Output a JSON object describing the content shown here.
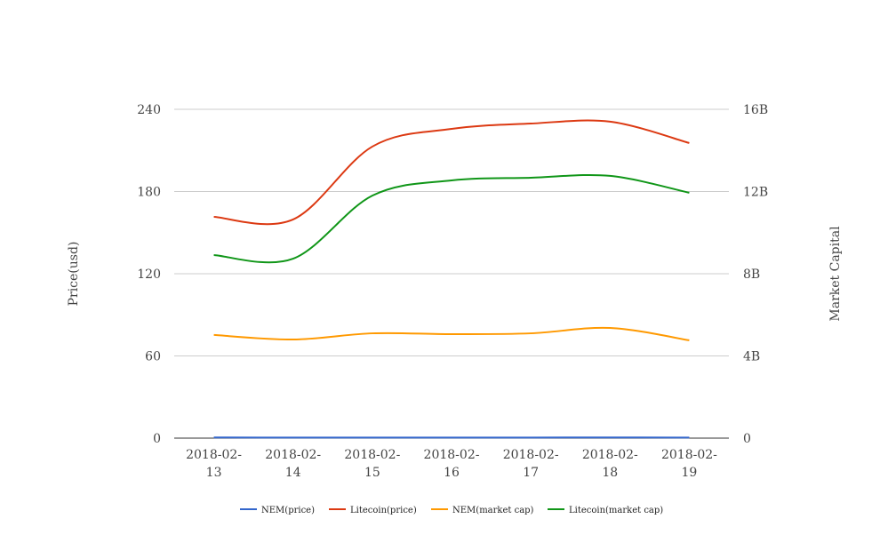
{
  "chart_data": {
    "type": "line",
    "categories": [
      "2018-02-13",
      "2018-02-14",
      "2018-02-15",
      "2018-02-16",
      "2018-02-17",
      "2018-02-18",
      "2018-02-19"
    ],
    "y_left": {
      "label": "Price(usd)",
      "range": [
        0,
        240
      ],
      "ticks": [
        "0",
        "60",
        "120",
        "180",
        "240"
      ]
    },
    "y_right": {
      "label": "Market Capital",
      "range": [
        0,
        16000000000
      ],
      "ticks": [
        "0",
        "4B",
        "8B",
        "12B",
        "16B"
      ]
    },
    "grid": true,
    "curve": "smooth",
    "legend": "bottom",
    "series": [
      {
        "name": "NEM(price)",
        "axis": "left",
        "color": "#3366cc",
        "values": [
          0.45,
          0.43,
          0.44,
          0.43,
          0.44,
          0.46,
          0.42
        ]
      },
      {
        "name": "Litecoin(price)",
        "axis": "left",
        "color": "#dc3912",
        "values": [
          161.5,
          159.6,
          212.8,
          225.7,
          229.6,
          231,
          215.4
        ]
      },
      {
        "name": "NEM(market cap)",
        "axis": "right",
        "color": "#ff9900",
        "values": [
          5020000000,
          4800000000,
          5100000000,
          5060000000,
          5100000000,
          5360000000,
          4760000000
        ]
      },
      {
        "name": "Litecoin(market cap)",
        "axis": "right",
        "color": "#109618",
        "values": [
          8910000000,
          8730000000,
          11800000000,
          12540000000,
          12670000000,
          12760000000,
          11940000000
        ]
      }
    ]
  }
}
